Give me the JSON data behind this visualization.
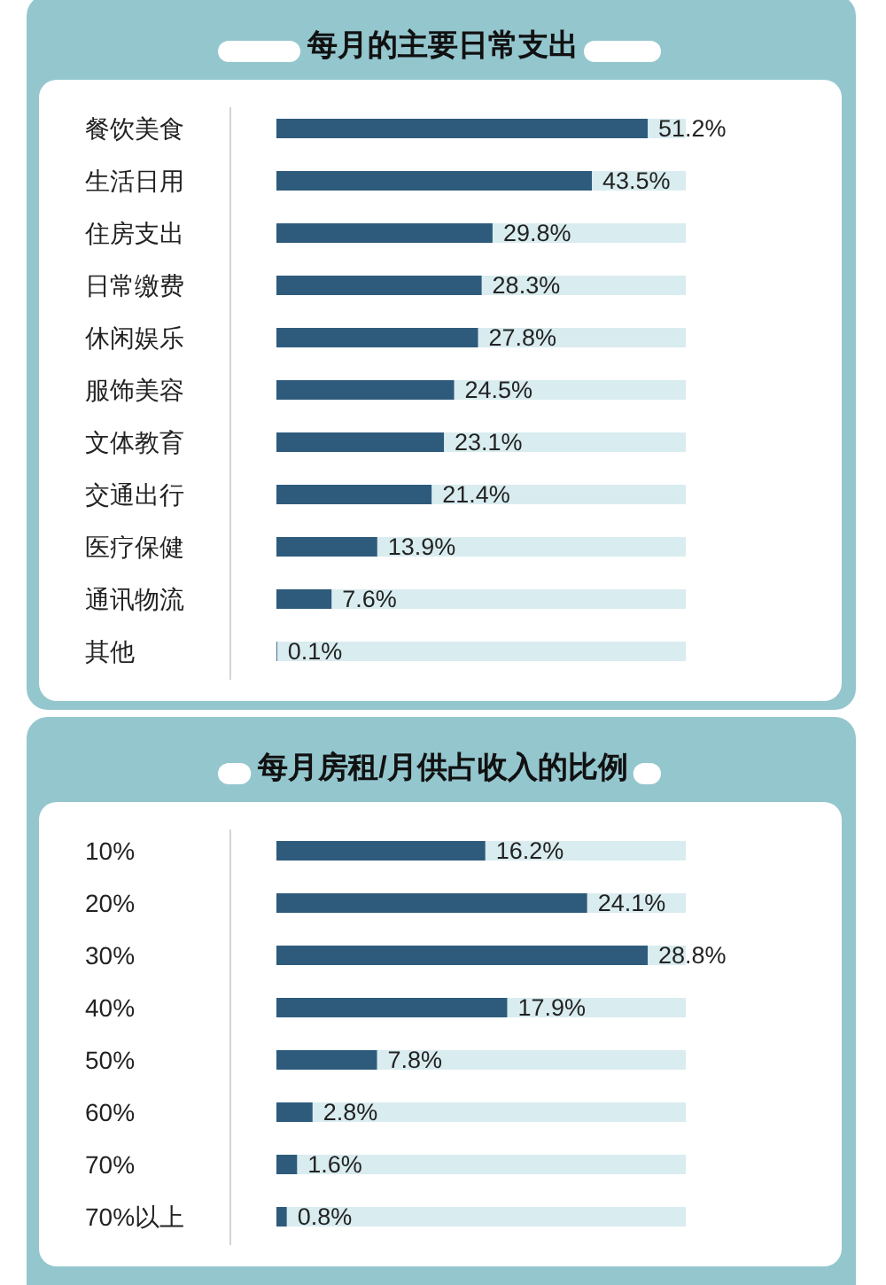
{
  "chart_data": [
    {
      "type": "bar",
      "orientation": "horizontal",
      "title": "每月的主要日常支出",
      "categories": [
        "餐饮美食",
        "生活日用",
        "住房支出",
        "日常缴费",
        "休闲娱乐",
        "服饰美容",
        "文体教育",
        "交通出行",
        "医疗保健",
        "通讯物流",
        "其他"
      ],
      "values": [
        51.2,
        43.5,
        29.8,
        28.3,
        27.8,
        24.5,
        23.1,
        21.4,
        13.9,
        7.6,
        0.1
      ],
      "value_labels": [
        "51.2%",
        "43.5%",
        "29.8%",
        "28.3%",
        "27.8%",
        "24.5%",
        "23.1%",
        "21.4%",
        "13.9%",
        "7.6%",
        "0.1%"
      ],
      "color": "#2e5b7c",
      "tick_labels": "y"
    },
    {
      "type": "bar",
      "orientation": "horizontal",
      "title": "每月房租/月供占收入的比例",
      "categories": [
        "10%",
        "20%",
        "30%",
        "40%",
        "50%",
        "60%",
        "70%",
        "70%以上"
      ],
      "values": [
        16.2,
        24.1,
        28.8,
        17.9,
        7.8,
        2.8,
        1.6,
        0.8
      ],
      "value_labels": [
        "16.2%",
        "24.1%",
        "28.8%",
        "17.9%",
        "7.8%",
        "2.8%",
        "1.6%",
        "0.8%"
      ],
      "color": "#2e5b7c",
      "tick_labels": "y"
    }
  ]
}
